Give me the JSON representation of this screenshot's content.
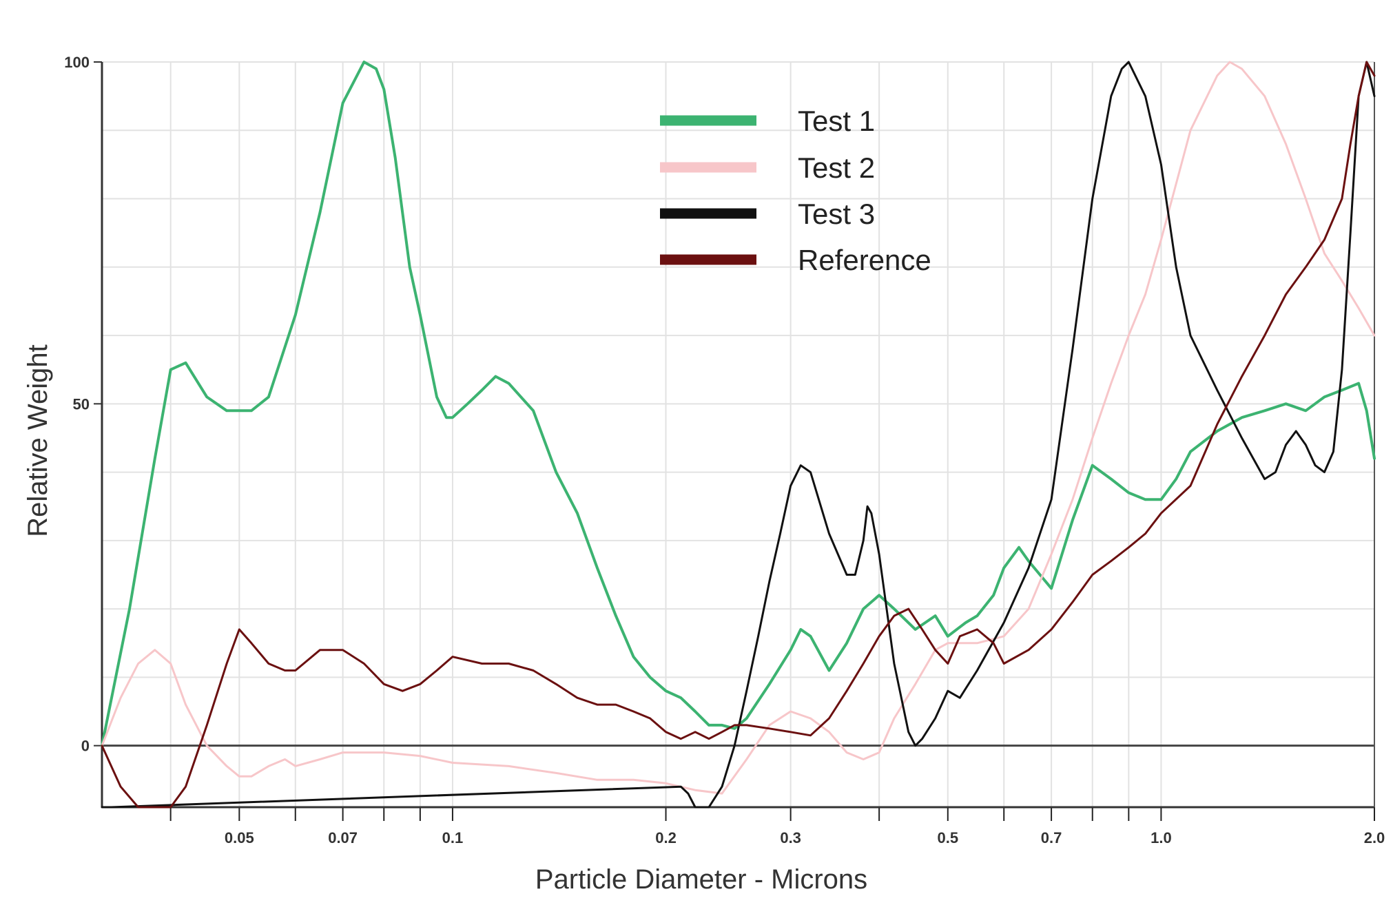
{
  "chart_data": {
    "type": "line",
    "title": "",
    "xlabel": "Particle Diameter - Microns",
    "ylabel": "Relative Weight",
    "x_scale": "log",
    "xlim": [
      0.032,
      2.0
    ],
    "ylim": [
      -9,
      100
    ],
    "grid": true,
    "legend_placement": "top-center",
    "x_ticks": [
      {
        "value": 0.05,
        "label": "0.05"
      },
      {
        "value": 0.07,
        "label": "0.07"
      },
      {
        "value": 0.1,
        "label": "0.1"
      },
      {
        "value": 0.2,
        "label": "0.2"
      },
      {
        "value": 0.3,
        "label": "0.3"
      },
      {
        "value": 0.5,
        "label": "0.5"
      },
      {
        "value": 0.7,
        "label": "0.7"
      },
      {
        "value": 1.0,
        "label": "1.0"
      },
      {
        "value": 2.0,
        "label": "2.0"
      }
    ],
    "y_ticks": [
      {
        "value": 0,
        "label": "0"
      },
      {
        "value": 50,
        "label": "50"
      },
      {
        "value": 100,
        "label": "100"
      }
    ],
    "series": [
      {
        "name": "Test 1",
        "color": "#3cb371",
        "x": [
          0.032,
          0.035,
          0.038,
          0.04,
          0.042,
          0.045,
          0.048,
          0.052,
          0.055,
          0.06,
          0.065,
          0.07,
          0.075,
          0.078,
          0.08,
          0.083,
          0.087,
          0.09,
          0.095,
          0.098,
          0.1,
          0.105,
          0.11,
          0.115,
          0.12,
          0.13,
          0.14,
          0.15,
          0.16,
          0.17,
          0.18,
          0.19,
          0.2,
          0.21,
          0.22,
          0.23,
          0.24,
          0.25,
          0.26,
          0.28,
          0.3,
          0.31,
          0.32,
          0.34,
          0.36,
          0.38,
          0.4,
          0.42,
          0.45,
          0.48,
          0.5,
          0.53,
          0.55,
          0.58,
          0.6,
          0.63,
          0.65,
          0.7,
          0.75,
          0.8,
          0.85,
          0.9,
          0.95,
          1.0,
          1.05,
          1.1,
          1.2,
          1.3,
          1.4,
          1.5,
          1.6,
          1.7,
          1.8,
          1.9,
          1.95,
          2.0
        ],
        "y": [
          0,
          20,
          42,
          55,
          56,
          51,
          49,
          49,
          51,
          63,
          78,
          94,
          100,
          99,
          96,
          86,
          70,
          63,
          51,
          48,
          48,
          50,
          52,
          54,
          53,
          49,
          40,
          34,
          26,
          19,
          13,
          10,
          8,
          7,
          5,
          3,
          3,
          2.5,
          4,
          9,
          14,
          17,
          16,
          11,
          15,
          20,
          22,
          20,
          17,
          19,
          16,
          18,
          19,
          22,
          26,
          29,
          27,
          23,
          33,
          41,
          39,
          37,
          36,
          36,
          39,
          43,
          46,
          48,
          49,
          50,
          49,
          51,
          52,
          53,
          49,
          42
        ]
      },
      {
        "name": "Test 2",
        "color": "#f7c6c9",
        "x": [
          0.032,
          0.034,
          0.036,
          0.038,
          0.04,
          0.042,
          0.045,
          0.048,
          0.05,
          0.052,
          0.055,
          0.058,
          0.06,
          0.065,
          0.07,
          0.08,
          0.09,
          0.1,
          0.12,
          0.14,
          0.16,
          0.18,
          0.2,
          0.22,
          0.24,
          0.26,
          0.28,
          0.3,
          0.32,
          0.34,
          0.36,
          0.38,
          0.4,
          0.42,
          0.45,
          0.48,
          0.5,
          0.55,
          0.6,
          0.65,
          0.7,
          0.75,
          0.8,
          0.85,
          0.9,
          0.95,
          1.0,
          1.1,
          1.2,
          1.25,
          1.3,
          1.4,
          1.5,
          1.6,
          1.7,
          1.8,
          1.9,
          2.0
        ],
        "y": [
          0,
          7,
          12,
          14,
          12,
          6,
          0,
          -3,
          -4.5,
          -4.5,
          -3,
          -2,
          -3,
          -2,
          -1,
          -1,
          -1.5,
          -2.5,
          -3,
          -4,
          -5,
          -5,
          -5.5,
          -6.5,
          -7,
          -2,
          3,
          5,
          4,
          2,
          -1,
          -2,
          -1,
          4,
          9,
          14,
          15,
          15,
          16,
          20,
          28,
          36,
          45,
          53,
          60,
          66,
          74,
          90,
          98,
          100,
          99,
          95,
          88,
          80,
          72,
          68,
          64,
          60
        ]
      },
      {
        "name": "Test 3",
        "color": "#111111",
        "x": [
          0.032,
          0.033,
          0.21,
          0.215,
          0.22,
          0.225,
          0.23,
          0.24,
          0.25,
          0.26,
          0.27,
          0.28,
          0.29,
          0.3,
          0.31,
          0.32,
          0.34,
          0.36,
          0.37,
          0.38,
          0.385,
          0.39,
          0.4,
          0.42,
          0.44,
          0.45,
          0.46,
          0.48,
          0.5,
          0.52,
          0.55,
          0.6,
          0.65,
          0.7,
          0.75,
          0.8,
          0.85,
          0.88,
          0.9,
          0.95,
          1.0,
          1.05,
          1.1,
          1.2,
          1.3,
          1.4,
          1.45,
          1.5,
          1.55,
          1.6,
          1.65,
          1.7,
          1.75,
          1.8,
          1.85,
          1.9,
          1.95,
          2.0
        ],
        "y": [
          -9,
          -9,
          -6,
          -7,
          -9,
          -9,
          -9,
          -6,
          0,
          8,
          16,
          24,
          31,
          38,
          41,
          40,
          31,
          25,
          25,
          30,
          35,
          34,
          28,
          12,
          2,
          0,
          1,
          4,
          8,
          7,
          11,
          18,
          26,
          36,
          58,
          80,
          95,
          99,
          100,
          95,
          85,
          70,
          60,
          52,
          45,
          39,
          40,
          44,
          46,
          44,
          41,
          40,
          43,
          55,
          75,
          95,
          100,
          95
        ]
      },
      {
        "name": "Reference",
        "color": "#6b1010",
        "x": [
          0.032,
          0.034,
          0.036,
          0.038,
          0.04,
          0.042,
          0.045,
          0.048,
          0.05,
          0.052,
          0.055,
          0.058,
          0.06,
          0.065,
          0.07,
          0.075,
          0.08,
          0.085,
          0.09,
          0.095,
          0.1,
          0.11,
          0.12,
          0.13,
          0.14,
          0.15,
          0.16,
          0.17,
          0.18,
          0.19,
          0.2,
          0.21,
          0.22,
          0.23,
          0.24,
          0.25,
          0.26,
          0.28,
          0.3,
          0.32,
          0.34,
          0.36,
          0.38,
          0.4,
          0.42,
          0.44,
          0.46,
          0.48,
          0.5,
          0.52,
          0.55,
          0.58,
          0.6,
          0.65,
          0.7,
          0.75,
          0.8,
          0.85,
          0.9,
          0.95,
          1.0,
          1.1,
          1.2,
          1.3,
          1.4,
          1.5,
          1.6,
          1.7,
          1.8,
          1.85,
          1.9,
          1.95,
          2.0
        ],
        "y": [
          0,
          -6,
          -9,
          -9,
          -9,
          -6,
          3,
          12,
          17,
          15,
          12,
          11,
          11,
          14,
          14,
          12,
          9,
          8,
          9,
          11,
          13,
          12,
          12,
          11,
          9,
          7,
          6,
          6,
          5,
          4,
          2,
          1,
          2,
          1,
          2,
          3,
          3,
          2.5,
          2,
          1.5,
          4,
          8,
          12,
          16,
          19,
          20,
          17,
          14,
          12,
          16,
          17,
          15,
          12,
          14,
          17,
          21,
          25,
          27,
          29,
          31,
          34,
          38,
          47,
          54,
          60,
          66,
          70,
          74,
          80,
          88,
          95,
          100,
          98
        ]
      }
    ]
  }
}
